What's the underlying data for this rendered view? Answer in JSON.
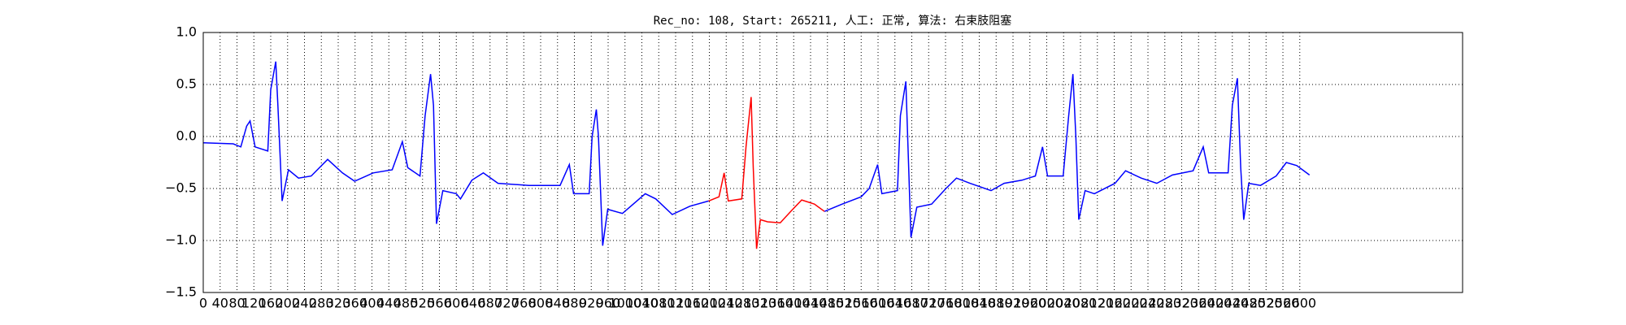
{
  "chart_data": {
    "type": "line",
    "title": "Rec_no: 108, Start: 265211, 人工: 正常, 算法: 右束肢阻塞",
    "x": [
      0,
      71,
      89,
      103,
      111,
      123,
      153,
      160,
      172,
      177,
      187,
      202,
      226,
      256,
      295,
      330,
      359,
      403,
      448,
      472,
      485,
      514,
      526,
      539,
      546,
      553,
      568,
      600,
      610,
      637,
      664,
      699,
      772,
      846,
      868,
      878,
      915,
      922,
      932,
      937,
      947,
      959,
      994,
      1048,
      1073,
      1112,
      1154,
      1198,
      1223,
      1235,
      1245,
      1277,
      1287,
      1299,
      1304,
      1312,
      1321,
      1338,
      1368,
      1393,
      1419,
      1449,
      1473,
      1515,
      1560,
      1579,
      1599,
      1609,
      1646,
      1653,
      1666,
      1678,
      1692,
      1727,
      1761,
      1786,
      1818,
      1868,
      1899,
      1941,
      1973,
      1990,
      2002,
      2039,
      2052,
      2062,
      2069,
      2076,
      2091,
      2113,
      2162,
      2187,
      2224,
      2261,
      2298,
      2347,
      2371,
      2384,
      2430,
      2440,
      2452,
      2460,
      2467,
      2479,
      2507,
      2544,
      2568,
      2593,
      2623
    ],
    "series": [
      {
        "color": "#0000ff",
        "values": [
          -0.06,
          -0.07,
          -0.1,
          0.1,
          0.15,
          -0.1,
          -0.14,
          0.45,
          0.72,
          0.3,
          -0.62,
          -0.32,
          -0.4,
          -0.38,
          -0.22,
          -0.35,
          -0.43,
          -0.35,
          -0.32,
          -0.05,
          -0.3,
          -0.38,
          0.2,
          0.6,
          0.3,
          -0.84,
          -0.52,
          -0.55,
          -0.6,
          -0.42,
          -0.35,
          -0.45,
          -0.47,
          -0.47,
          -0.27,
          -0.55,
          -0.55,
          0.0,
          0.26,
          0.0,
          -1.05,
          -0.7,
          -0.74,
          -0.55,
          -0.6,
          -0.75,
          -0.67,
          -0.62,
          null,
          null,
          null,
          null,
          null,
          null,
          null,
          null,
          null,
          null,
          null,
          null,
          null,
          null,
          -0.72,
          -0.65,
          -0.58,
          -0.5,
          -0.27,
          -0.55,
          -0.52,
          0.2,
          0.53,
          -0.97,
          -0.68,
          -0.65,
          -0.5,
          -0.4,
          -0.45,
          -0.52,
          -0.45,
          -0.42,
          -0.38,
          -0.1,
          -0.38,
          -0.38,
          0.2,
          0.6,
          0.0,
          -0.8,
          -0.52,
          -0.55,
          -0.45,
          -0.33,
          -0.4,
          -0.45,
          -0.37,
          -0.33,
          -0.1,
          -0.35,
          -0.35,
          0.3,
          0.56,
          -0.3,
          -0.8,
          -0.45,
          -0.47,
          -0.38,
          -0.25,
          -0.28,
          -0.37
        ]
      },
      {
        "color": "#ff0000",
        "values": [
          null,
          null,
          null,
          null,
          null,
          null,
          null,
          null,
          null,
          null,
          null,
          null,
          null,
          null,
          null,
          null,
          null,
          null,
          null,
          null,
          null,
          null,
          null,
          null,
          null,
          null,
          null,
          null,
          null,
          null,
          null,
          null,
          null,
          null,
          null,
          null,
          null,
          null,
          null,
          null,
          null,
          null,
          null,
          null,
          null,
          null,
          null,
          -0.62,
          -0.58,
          -0.35,
          -0.62,
          -0.6,
          -0.1,
          0.38,
          -0.3,
          -1.08,
          -0.8,
          -0.82,
          -0.83,
          -0.72,
          -0.61,
          -0.65,
          -0.72,
          null,
          null,
          null,
          null,
          null,
          null,
          null,
          null,
          null,
          null,
          null,
          null,
          null,
          null,
          null,
          null,
          null,
          null,
          null,
          null,
          null,
          null,
          null,
          null,
          null,
          null,
          null,
          null,
          null,
          null,
          null,
          null,
          null,
          null,
          null,
          null,
          null,
          null,
          null,
          null,
          null,
          null,
          null,
          null,
          null,
          null
        ]
      }
    ],
    "xlim": [
      0,
      2986
    ],
    "xticks": [
      0,
      40,
      80,
      120,
      160,
      200,
      240,
      280,
      320,
      360,
      400,
      440,
      480,
      520,
      560,
      600,
      640,
      680,
      720,
      760,
      800,
      840,
      880,
      920,
      960,
      1000,
      1040,
      1080,
      1120,
      1160,
      1200,
      1240,
      1280,
      1320,
      1360,
      1400,
      1440,
      1480,
      1520,
      1560,
      1600,
      1640,
      1680,
      1720,
      1760,
      1800,
      1840,
      1880,
      1920,
      1960,
      2000,
      2040,
      2080,
      2120,
      2160,
      2200,
      2240,
      2280,
      2320,
      2360,
      2400,
      2440,
      2480,
      2520,
      2560,
      2600
    ],
    "ylim": [
      -1.5,
      1.0
    ],
    "yticks": [
      {
        "value": -1.5,
        "label": "−1.5"
      },
      {
        "value": -1,
        "label": "−1.0"
      },
      {
        "value": -0.5,
        "label": "−0.5"
      },
      {
        "value": 0,
        "label": "0.0"
      },
      0.5,
      {
        "value": 1,
        "label": "1.0"
      }
    ],
    "grid": true
  }
}
